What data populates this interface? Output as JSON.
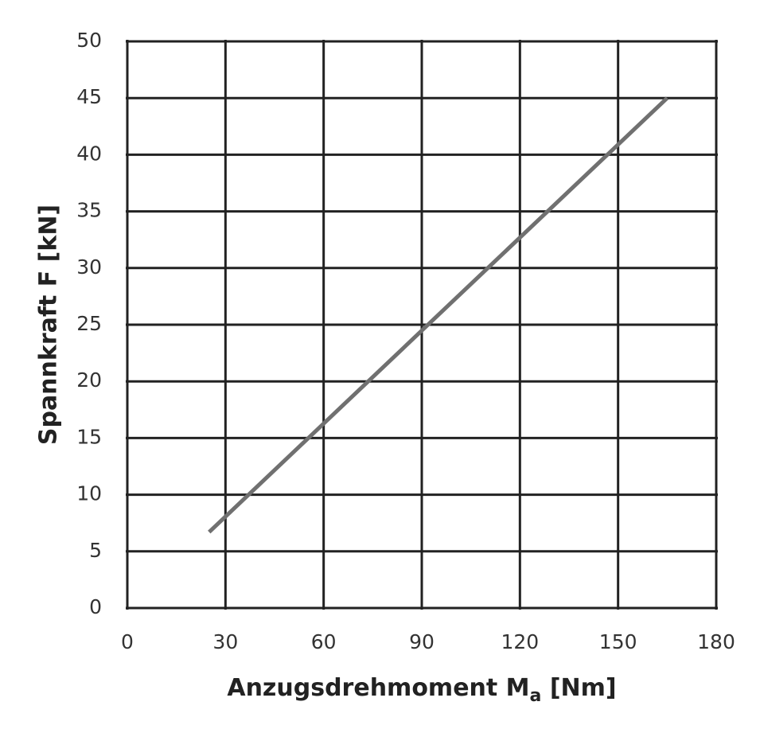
{
  "chart_data": {
    "type": "line",
    "y_label": "Spannkraft F [kN]",
    "x_label": [
      "Anzugsdrehmoment M",
      "a",
      " [Nm]"
    ],
    "x": [
      25,
      165
    ],
    "series": [
      {
        "color": "#707070",
        "values": [
          6.7,
          45
        ]
      }
    ],
    "xlim": [
      0,
      180
    ],
    "xticks": [
      0,
      30,
      60,
      90,
      120,
      150,
      180
    ],
    "ylim": [
      0,
      50
    ],
    "yticks": [
      0,
      5,
      10,
      15,
      20,
      25,
      30,
      35,
      40,
      45,
      50
    ],
    "grid": true
  }
}
